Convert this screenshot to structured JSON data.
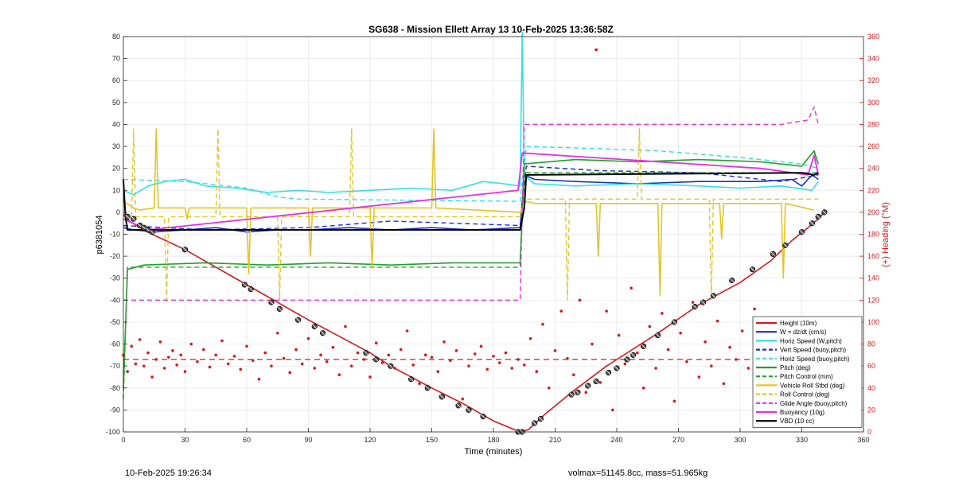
{
  "footer": {
    "timestamp": "10-Feb-2025 19:26:34",
    "volmax_mass": "volmax=51145.8cc, mass=51.965kg"
  },
  "chart_data": {
    "type": "line",
    "title": "SG638 - Mission Ellett Array 13 10-Feb-2025 13:36:58Z",
    "xlabel": "Time (minutes)",
    "ylabel": "p6381054",
    "y2label": "(+) Heading (°M)",
    "xlim": [
      0,
      360
    ],
    "ylim": [
      -100,
      80
    ],
    "y2lim": [
      0,
      360
    ],
    "xticks": [
      0,
      30,
      60,
      90,
      120,
      150,
      180,
      210,
      240,
      270,
      300,
      330,
      360
    ],
    "yticks": [
      80,
      70,
      60,
      50,
      40,
      30,
      20,
      10,
      0,
      -10,
      -20,
      -30,
      -40,
      -50,
      -60,
      -70,
      -80,
      -90,
      -100
    ],
    "y2ticks": [
      360,
      340,
      320,
      300,
      280,
      260,
      240,
      220,
      200,
      180,
      160,
      140,
      120,
      100,
      80,
      60,
      40,
      20,
      0
    ],
    "grid": true,
    "legend_position": "bottom-right",
    "legend": [
      {
        "label": "Height (10m)",
        "color": "#d7191c",
        "style": "solid"
      },
      {
        "label": "W = dz/dt (cm/s)",
        "color": "#1f2fbf",
        "style": "solid"
      },
      {
        "label": "Horiz Speed (W,pitch)",
        "color": "#33e0e6",
        "style": "solid"
      },
      {
        "label": "Vert Speed (buoy,pitch)",
        "color": "#1f2fbf",
        "style": "dashed"
      },
      {
        "label": "Horiz Speed (buoy,pitch)",
        "color": "#33e0e6",
        "style": "dashed"
      },
      {
        "label": "Pitch (deg)",
        "color": "#22a02c",
        "style": "solid"
      },
      {
        "label": "Pitch Control (mm)",
        "color": "#22a02c",
        "style": "dashed"
      },
      {
        "label": "Vehicle Roll Stbd (deg)",
        "color": "#e3c42a",
        "style": "solid"
      },
      {
        "label": "Roll Control (deg)",
        "color": "#e3c42a",
        "style": "dashed"
      },
      {
        "label": "Glide Angle (buoy,pitch)",
        "color": "#e62ee6",
        "style": "dashed"
      },
      {
        "label": "Buoyancy (10g)",
        "color": "#e62ee6",
        "style": "solid"
      },
      {
        "label": "VBD (10 cc)",
        "color": "#000000",
        "style": "solid"
      }
    ],
    "series": [
      {
        "name": "Height (10m)",
        "color": "#d7191c",
        "width": 1.6,
        "dash": "",
        "x": [
          0,
          3,
          8,
          14,
          30,
          60,
          75,
          90,
          98,
          120,
          130,
          150,
          165,
          180,
          193,
          197,
          205,
          218,
          235,
          260,
          280,
          300,
          315,
          325,
          333,
          338,
          341
        ],
        "y": [
          -1,
          -4,
          -7,
          -10,
          -17,
          -33,
          -41,
          -49,
          -53,
          -64,
          -70,
          -80,
          -87,
          -95,
          -100,
          -99,
          -92,
          -82,
          -70,
          -55,
          -42,
          -32,
          -22,
          -13,
          -7,
          -3,
          0
        ]
      },
      {
        "name": "W = dz/dt (cm/s)",
        "color": "#1f2fbf",
        "width": 1.6,
        "dash": "",
        "x": [
          0,
          5,
          15,
          30,
          45,
          60,
          75,
          90,
          110,
          130,
          150,
          170,
          193,
          195,
          200,
          220,
          250,
          280,
          310,
          325,
          330,
          335,
          338
        ],
        "y": [
          -7,
          -8,
          -9,
          -8,
          -7,
          -9,
          -8,
          -8,
          -7,
          -8,
          -7,
          -8,
          -7,
          17,
          15,
          14,
          13,
          14,
          14,
          15,
          12,
          17,
          15
        ]
      },
      {
        "name": "Horiz Speed (W,pitch)",
        "color": "#33e0e6",
        "width": 1.6,
        "dash": "",
        "x": [
          0,
          5,
          12,
          20,
          30,
          40,
          55,
          70,
          85,
          100,
          120,
          140,
          160,
          175,
          185,
          193,
          194,
          195,
          196,
          200,
          220,
          250,
          280,
          300,
          320,
          335,
          338
        ],
        "y": [
          10,
          8,
          12,
          14,
          15,
          12,
          11,
          9,
          10,
          9,
          10,
          11,
          10,
          14,
          13,
          12,
          82,
          20,
          16,
          13,
          12,
          13,
          12,
          11,
          12,
          10,
          14
        ]
      },
      {
        "name": "Vert Speed (buoy,pitch)",
        "color": "#1f2fbf",
        "width": 1.4,
        "dash": "6,4",
        "x": [
          0,
          40,
          90,
          130,
          193,
          196,
          230,
          280,
          320,
          338
        ],
        "y": [
          -6,
          -8,
          -7,
          -4,
          -6,
          21,
          19,
          18,
          14,
          17
        ]
      },
      {
        "name": "Horiz Speed (buoy,pitch)",
        "color": "#33e0e6",
        "width": 1.4,
        "dash": "6,4",
        "x": [
          0,
          30,
          60,
          75,
          85,
          193,
          196,
          230,
          260,
          300,
          330,
          338
        ],
        "y": [
          15,
          14,
          11,
          7,
          6,
          5,
          30,
          29,
          28,
          25,
          22,
          20
        ]
      },
      {
        "name": "Pitch (deg)",
        "color": "#22a02c",
        "width": 1.6,
        "dash": "",
        "x": [
          0,
          2,
          10,
          40,
          70,
          100,
          130,
          160,
          193,
          195,
          220,
          250,
          280,
          310,
          330,
          336,
          338
        ],
        "y": [
          -80,
          -26,
          -24,
          -23,
          -24,
          -23,
          -24,
          -23,
          -23,
          22,
          24,
          23,
          24,
          23,
          21,
          28,
          22
        ]
      },
      {
        "name": "Pitch Control (mm)",
        "color": "#22a02c",
        "width": 1.4,
        "dash": "6,4",
        "x": [
          0,
          2,
          10,
          60,
          100,
          160,
          193,
          195,
          240,
          290,
          320,
          338
        ],
        "y": [
          -85,
          -25,
          -25,
          -25,
          -25,
          -25,
          -25,
          18,
          18,
          18,
          18,
          18
        ]
      },
      {
        "name": "Vehicle Roll Stbd (deg)",
        "color": "#e3c42a",
        "width": 1.6,
        "dash": "",
        "x": [
          0,
          5,
          8,
          15,
          16,
          17,
          30,
          31,
          32,
          60,
          61,
          62,
          90,
          91,
          92,
          120,
          121,
          122,
          150,
          151,
          152,
          193,
          194,
          196,
          200,
          230,
          231,
          232,
          260,
          261,
          262,
          290,
          291,
          292,
          320,
          321,
          322,
          336
        ],
        "y": [
          5,
          2,
          1,
          2,
          38,
          2,
          2,
          -3,
          2,
          2,
          -28,
          2,
          2,
          -20,
          2,
          2,
          -25,
          2,
          2,
          38,
          2,
          0,
          2,
          5,
          4,
          4,
          -20,
          4,
          4,
          -38,
          4,
          4,
          -12,
          4,
          4,
          -30,
          4,
          1
        ]
      },
      {
        "name": "Roll Control (deg)",
        "color": "#e3c42a",
        "width": 1.4,
        "dash": "6,4",
        "x": [
          0,
          4,
          5,
          6,
          20,
          21,
          22,
          45,
          46,
          47,
          75,
          76,
          77,
          110,
          111,
          112,
          193,
          196,
          215,
          216,
          217,
          250,
          251,
          252,
          285,
          286,
          287,
          338
        ],
        "y": [
          -2,
          -2,
          38,
          -2,
          -2,
          -40,
          -2,
          -2,
          38,
          -2,
          -2,
          -40,
          -2,
          -2,
          38,
          -2,
          -2,
          6,
          6,
          -40,
          6,
          6,
          38,
          6,
          6,
          -40,
          6,
          6
        ]
      },
      {
        "name": "Glide Angle (buoy,pitch)",
        "color": "#e62ee6",
        "width": 1.4,
        "dash": "6,4",
        "x": [
          0,
          10,
          40,
          80,
          120,
          160,
          193,
          195,
          240,
          280,
          320,
          333,
          336,
          338
        ],
        "y": [
          -40,
          -40,
          -40,
          -40,
          -40,
          -40,
          -40,
          40,
          40,
          40,
          40,
          42,
          48,
          40
        ]
      },
      {
        "name": "Buoyancy (10g)",
        "color": "#e62ee6",
        "width": 1.8,
        "dash": "",
        "x": [
          0,
          12,
          192,
          194,
          310,
          333,
          336,
          338
        ],
        "y": [
          -3,
          -8,
          10,
          27,
          20,
          17,
          26,
          17
        ]
      },
      {
        "name": "VBD (10 cc)",
        "color": "#000000",
        "width": 2.0,
        "dash": "",
        "x": [
          0,
          1,
          2,
          193,
          195,
          196,
          330,
          336,
          338
        ],
        "y": [
          15,
          -2,
          -8,
          -8,
          2,
          17,
          18,
          17,
          18
        ]
      }
    ],
    "markers": {
      "name": "Height (10m)",
      "x": [
        2,
        5,
        8,
        10,
        12,
        14,
        30,
        59,
        62,
        72,
        76,
        85,
        93,
        97,
        118,
        123,
        130,
        140,
        148,
        155,
        163,
        168,
        175,
        192,
        194,
        200,
        203,
        218,
        221,
        226,
        230,
        236,
        240,
        245,
        248,
        253,
        260,
        268,
        278,
        282,
        287,
        296,
        306,
        316,
        322,
        330,
        335,
        338,
        341
      ],
      "y": [
        -2,
        -3,
        -6,
        -7,
        -8,
        -9,
        -17,
        -33,
        -35,
        -41,
        -44,
        -49,
        -52,
        -55,
        -64,
        -67,
        -70,
        -76,
        -80,
        -84,
        -88,
        -90,
        -93,
        -100,
        -100,
        -96,
        -94,
        -83,
        -82,
        -79,
        -77,
        -73,
        -71,
        -67,
        -65,
        -61,
        -56,
        -50,
        -43,
        -41,
        -38,
        -31,
        -26,
        -19,
        -15,
        -9,
        -5,
        -2,
        0
      ]
    },
    "heading": {
      "name": "(+) Heading (°M)",
      "axis": "right",
      "color": "#d7191c",
      "mean": 66,
      "points_x": [
        0,
        2,
        4,
        6,
        8,
        10,
        12,
        14,
        16,
        18,
        20,
        22,
        24,
        26,
        28,
        30,
        33,
        36,
        39,
        42,
        45,
        48,
        51,
        54,
        57,
        60,
        63,
        66,
        69,
        72,
        75,
        78,
        81,
        84,
        87,
        90,
        93,
        96,
        99,
        102,
        105,
        108,
        111,
        114,
        117,
        120,
        123,
        126,
        129,
        132,
        135,
        138,
        141,
        144,
        147,
        150,
        153,
        156,
        159,
        162,
        165,
        168,
        171,
        174,
        177,
        180,
        183,
        186,
        189,
        192,
        195,
        198,
        201,
        204,
        207,
        210,
        213,
        216,
        219,
        222,
        225,
        228,
        230,
        232,
        235,
        238,
        241,
        244,
        247,
        250,
        253,
        256,
        259,
        262,
        265,
        268,
        271,
        274,
        277,
        280,
        283,
        286,
        289,
        292,
        295,
        298,
        301,
        304,
        307,
        310,
        313,
        316,
        319,
        322,
        325,
        328,
        331,
        334,
        337,
        340
      ],
      "points_y": [
        70,
        55,
        78,
        62,
        84,
        60,
        72,
        50,
        66,
        82,
        58,
        68,
        74,
        61,
        70,
        55,
        80,
        64,
        75,
        59,
        70,
        83,
        62,
        69,
        57,
        78,
        65,
        48,
        72,
        60,
        90,
        67,
        54,
        75,
        62,
        85,
        58,
        70,
        64,
        77,
        52,
        96,
        60,
        72,
        66,
        50,
        81,
        63,
        70,
        58,
        75,
        92,
        61,
        44,
        70,
        68,
        55,
        82,
        65,
        74,
        30,
        60,
        71,
        78,
        57,
        69,
        63,
        72,
        58,
        66,
        61,
        85,
        55,
        98,
        40,
        74,
        110,
        67,
        52,
        120,
        36,
        80,
        348,
        45,
        110,
        20,
        88,
        62,
        131,
        72,
        40,
        96,
        58,
        108,
        75,
        28,
        90,
        64,
        118,
        50,
        82,
        60,
        101,
        44,
        77,
        66,
        92,
        58,
        112,
        48,
        72,
        86,
        54,
        70,
        95,
        62,
        49,
        84,
        66,
        74
      ]
    }
  }
}
